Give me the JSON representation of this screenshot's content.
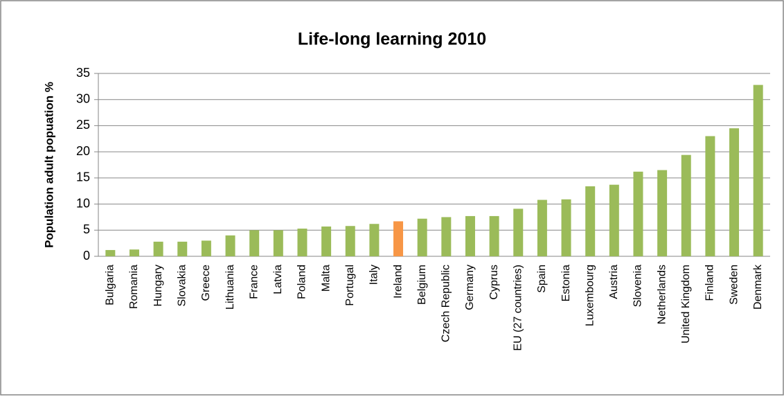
{
  "chart_data": {
    "type": "bar",
    "title": "Life-long learning 2010",
    "y_label": "Population adult popuation %",
    "categories": [
      "Bulgaria",
      "Romania",
      "Hungary",
      "Slovakia",
      "Greece",
      "Lithuania",
      "France",
      "Latvia",
      "Poland",
      "Malta",
      "Portugal",
      "Italy",
      "Ireland",
      "Belgium",
      "Czech Republic",
      "Germany",
      "Cyprus",
      "EU (27 countries)",
      "Spain",
      "Estonia",
      "Luxembourg",
      "Austria",
      "Slovenia",
      "Netherlands",
      "United Kingdom",
      "Finland",
      "Sweden",
      "Denmark"
    ],
    "values": [
      1.2,
      1.3,
      2.8,
      2.8,
      3.0,
      4.0,
      5.0,
      5.0,
      5.3,
      5.7,
      5.8,
      6.2,
      6.7,
      7.2,
      7.5,
      7.7,
      7.7,
      9.1,
      10.8,
      10.9,
      13.4,
      13.7,
      16.2,
      16.5,
      19.4,
      23.0,
      24.5,
      32.8
    ],
    "colors": [
      "#9bbb59",
      "#9bbb59",
      "#9bbb59",
      "#9bbb59",
      "#9bbb59",
      "#9bbb59",
      "#9bbb59",
      "#9bbb59",
      "#9bbb59",
      "#9bbb59",
      "#9bbb59",
      "#9bbb59",
      "#f79646",
      "#9bbb59",
      "#9bbb59",
      "#9bbb59",
      "#9bbb59",
      "#9bbb59",
      "#9bbb59",
      "#9bbb59",
      "#9bbb59",
      "#9bbb59",
      "#9bbb59",
      "#9bbb59",
      "#9bbb59",
      "#9bbb59",
      "#9bbb59",
      "#9bbb59"
    ],
    "ylim": [
      0,
      35
    ],
    "yticks": [
      0,
      5,
      10,
      15,
      20,
      25,
      30,
      35
    ],
    "grid": true
  }
}
